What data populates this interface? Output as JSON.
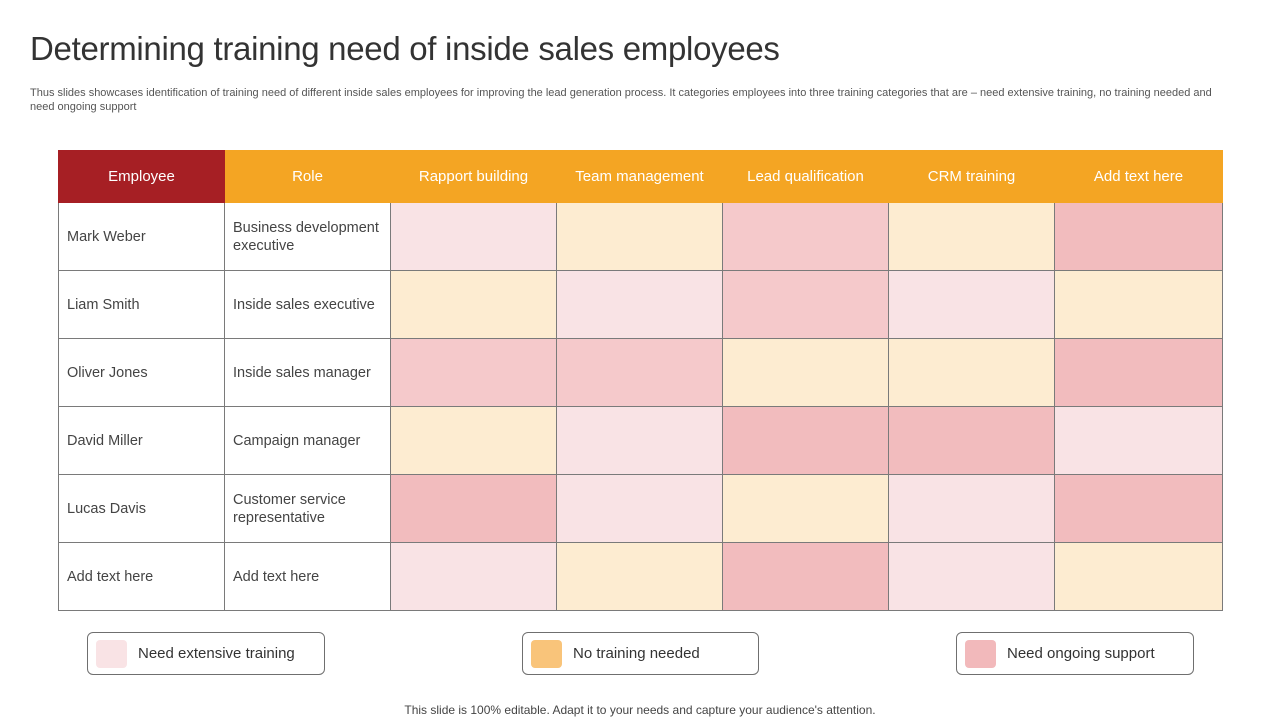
{
  "slide": {
    "title": "Determining training need of inside sales employees",
    "subtitle": "Thus slides showcases identification of training need of different inside sales employees for improving the lead generation process. It categories employees into three training categories that are – need extensive training, no training needed and need ongoing support",
    "footer": "This slide is 100% editable. Adapt it to your needs and capture your audience's attention."
  },
  "table": {
    "headers": [
      "Employee",
      "Role",
      "Rapport building",
      "Team management",
      "Lead qualification",
      "CRM training",
      "Add text here"
    ],
    "rows": [
      {
        "employee": "Mark Weber",
        "role": "Business development executive",
        "levels": [
          "extensive",
          "none",
          "ongoing",
          "none",
          "ongoing_dark"
        ]
      },
      {
        "employee": "Liam Smith",
        "role": "Inside sales executive",
        "levels": [
          "none",
          "extensive",
          "ongoing",
          "extensive",
          "none"
        ]
      },
      {
        "employee": "Oliver Jones",
        "role": "Inside sales manager",
        "levels": [
          "ongoing",
          "ongoing",
          "none",
          "none",
          "ongoing_dark"
        ]
      },
      {
        "employee": "David Miller",
        "role": "Campaign manager",
        "levels": [
          "none",
          "extensive",
          "ongoing_dark",
          "ongoing_dark",
          "extensive"
        ]
      },
      {
        "employee": "Lucas Davis",
        "role": "Customer service representative",
        "levels": [
          "ongoing_dark",
          "extensive",
          "none",
          "extensive",
          "ongoing_dark"
        ]
      },
      {
        "employee": "Add text here",
        "role": "Add text here",
        "levels": [
          "extensive",
          "none",
          "ongoing_dark",
          "extensive",
          "none"
        ]
      }
    ]
  },
  "legend": [
    {
      "label": "Need extensive training",
      "color": "#f9e3e5"
    },
    {
      "label": "No training needed",
      "color": "#f9c47a"
    },
    {
      "label": "Need ongoing support",
      "color": "#f2b9bb"
    }
  ],
  "colors": {
    "employee_header": "#a61f24",
    "header": "#f4a523",
    "extensive": "#f9e3e5",
    "none": "#fdecd1",
    "ongoing": "#f5c9cb",
    "ongoing_dark": "#f2bcbe"
  }
}
